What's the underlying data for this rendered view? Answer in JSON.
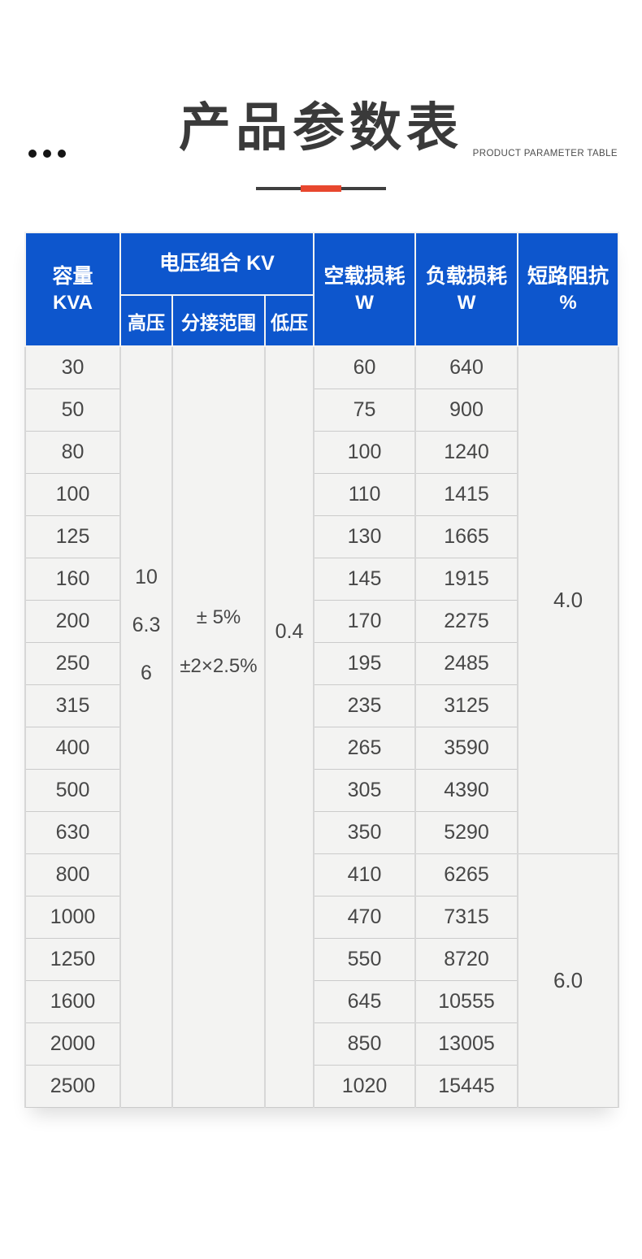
{
  "topbar": {
    "eyebrow": "PRODUCT PARAMETER TABLE"
  },
  "title": "产品参数表",
  "colors": {
    "header_blue": "#0d56cd",
    "accent_red": "#e8472e",
    "divider_dark": "#3f3f3f",
    "cell_bg": "#f3f3f2",
    "body_text": "#474747"
  },
  "table": {
    "header": {
      "capacity_line1": "容量",
      "capacity_line2": "KVA",
      "voltage_combo": "电压组合 KV",
      "sub_high_voltage": "高压",
      "sub_tap_range": "分接范围",
      "sub_low_voltage": "低压",
      "no_load_loss_line1": "空载损耗",
      "no_load_loss_line2": "W",
      "load_loss_line1": "负载损耗",
      "load_loss_line2": "W",
      "impedance_line1": "短路阻抗",
      "impedance_line2": "%"
    },
    "merged": {
      "high_voltage_values": [
        "10",
        "6.3",
        "6"
      ],
      "tap_range_values": [
        "± 5%",
        "±2×2.5%"
      ],
      "low_voltage_value": "0.4"
    },
    "impedance_groups": [
      {
        "value": "4.0",
        "row_span": 12
      },
      {
        "value": "6.0",
        "row_span": 6
      }
    ],
    "rows": [
      {
        "capacity": "30",
        "no_load_loss": "60",
        "load_loss": "640"
      },
      {
        "capacity": "50",
        "no_load_loss": "75",
        "load_loss": "900"
      },
      {
        "capacity": "80",
        "no_load_loss": "100",
        "load_loss": "1240"
      },
      {
        "capacity": "100",
        "no_load_loss": "110",
        "load_loss": "1415"
      },
      {
        "capacity": "125",
        "no_load_loss": "130",
        "load_loss": "1665"
      },
      {
        "capacity": "160",
        "no_load_loss": "145",
        "load_loss": "1915"
      },
      {
        "capacity": "200",
        "no_load_loss": "170",
        "load_loss": "2275"
      },
      {
        "capacity": "250",
        "no_load_loss": "195",
        "load_loss": "2485"
      },
      {
        "capacity": "315",
        "no_load_loss": "235",
        "load_loss": "3125"
      },
      {
        "capacity": "400",
        "no_load_loss": "265",
        "load_loss": "3590"
      },
      {
        "capacity": "500",
        "no_load_loss": "305",
        "load_loss": "4390"
      },
      {
        "capacity": "630",
        "no_load_loss": "350",
        "load_loss": "5290"
      },
      {
        "capacity": "800",
        "no_load_loss": "410",
        "load_loss": "6265"
      },
      {
        "capacity": "1000",
        "no_load_loss": "470",
        "load_loss": "7315"
      },
      {
        "capacity": "1250",
        "no_load_loss": "550",
        "load_loss": "8720"
      },
      {
        "capacity": "1600",
        "no_load_loss": "645",
        "load_loss": "10555"
      },
      {
        "capacity": "2000",
        "no_load_loss": "850",
        "load_loss": "13005"
      },
      {
        "capacity": "2500",
        "no_load_loss": "1020",
        "load_loss": "15445"
      }
    ]
  }
}
